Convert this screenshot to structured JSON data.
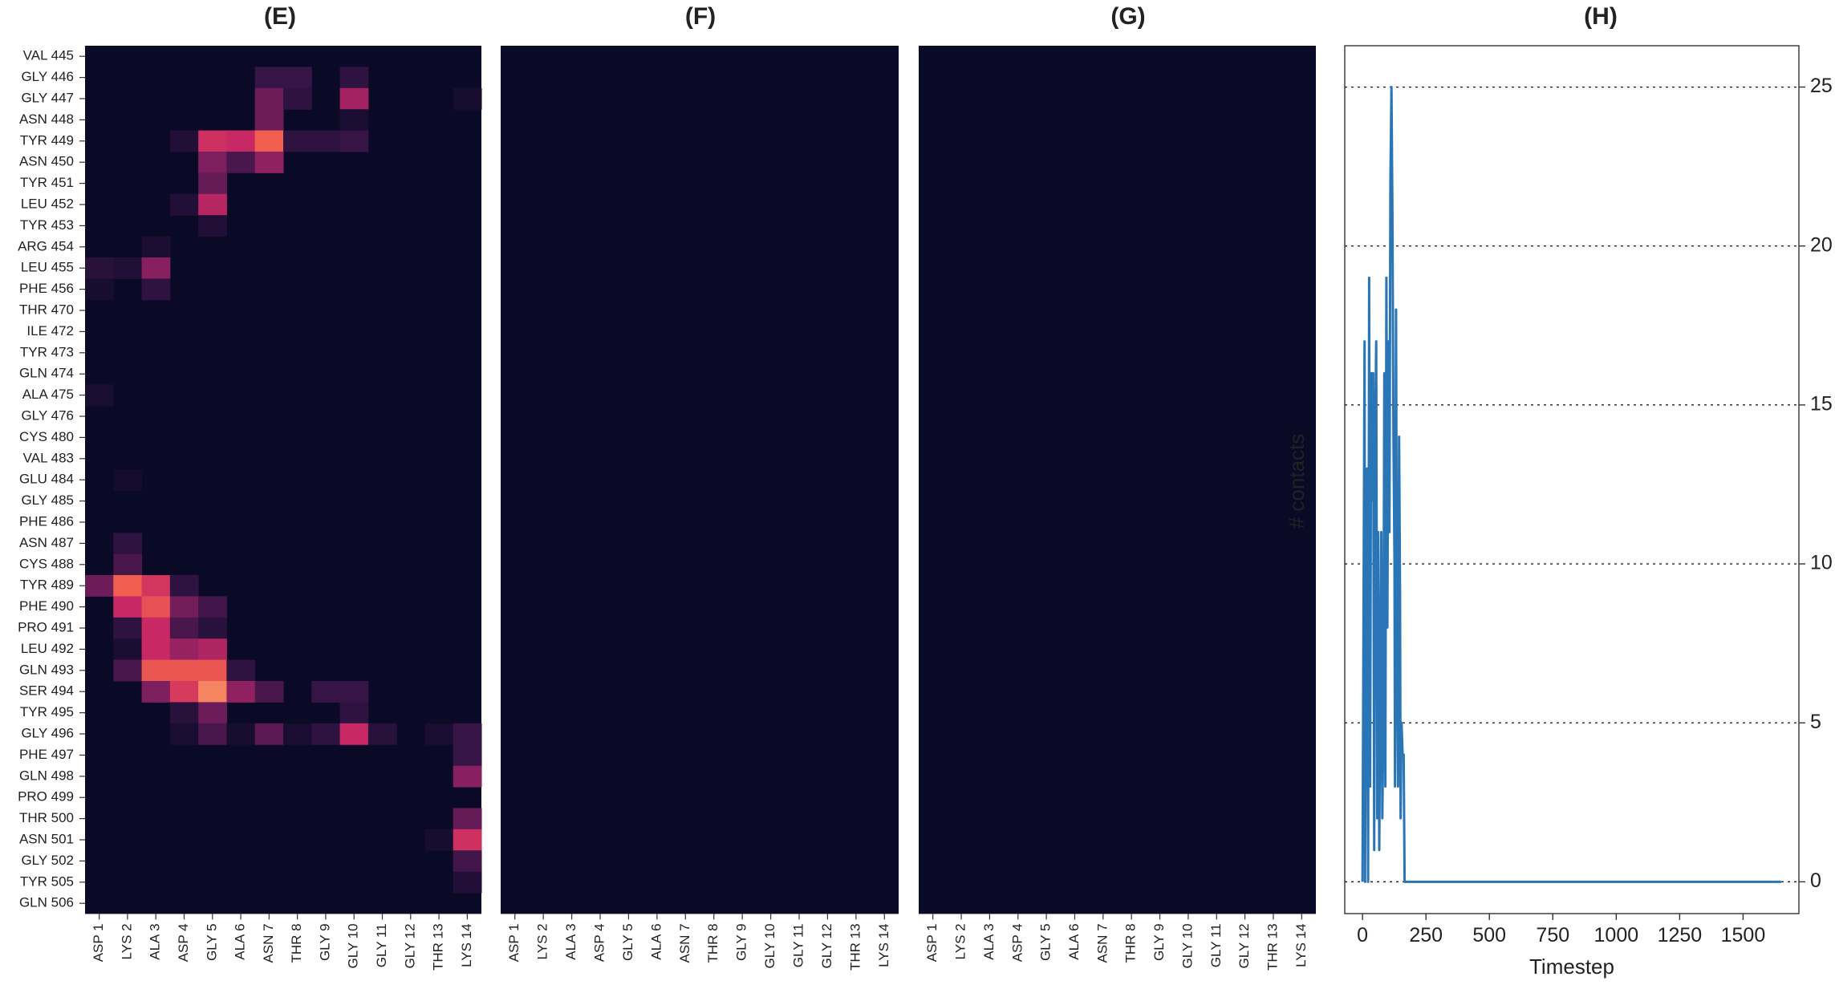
{
  "chart_data": [
    {
      "type": "heatmap",
      "title": "(E)",
      "x_categories": [
        "ASP 1",
        "LYS 2",
        "ALA 3",
        "ASP 4",
        "GLY 5",
        "ALA 6",
        "ASN 7",
        "THR 8",
        "GLY 9",
        "GLY 10",
        "GLY 11",
        "GLY 12",
        "THR 13",
        "LYS 14"
      ],
      "y_categories": [
        "VAL 445",
        "GLY 446",
        "GLY 447",
        "ASN 448",
        "TYR 449",
        "ASN 450",
        "TYR 451",
        "LEU 452",
        "TYR 453",
        "ARG 454",
        "LEU 455",
        "PHE 456",
        "THR 470",
        "ILE 472",
        "TYR 473",
        "GLN 474",
        "ALA 475",
        "GLY 476",
        "CYS 480",
        "VAL 483",
        "GLU 484",
        "GLY 485",
        "PHE 486",
        "ASN 487",
        "CYS 488",
        "TYR 489",
        "PHE 490",
        "PRO 491",
        "LEU 492",
        "GLN 493",
        "SER 494",
        "TYR 495",
        "GLY 496",
        "PHE 497",
        "GLN 498",
        "PRO 499",
        "THR 500",
        "ASN 501",
        "GLY 502",
        "TYR 505",
        "GLN 506"
      ],
      "values": [
        [
          0,
          0,
          0,
          0,
          0,
          0,
          0,
          0,
          0,
          0,
          0,
          0,
          0,
          0
        ],
        [
          0,
          0,
          0,
          0,
          0,
          0,
          0.15,
          0.15,
          0,
          0.12,
          0,
          0,
          0,
          0
        ],
        [
          0,
          0,
          0,
          0,
          0,
          0,
          0.3,
          0.12,
          0,
          0.45,
          0,
          0,
          0,
          0.04
        ],
        [
          0,
          0,
          0,
          0,
          0,
          0,
          0.3,
          0,
          0,
          0.05,
          0,
          0,
          0,
          0
        ],
        [
          0,
          0,
          0,
          0.08,
          0.58,
          0.55,
          0.75,
          0.12,
          0.12,
          0.15,
          0,
          0,
          0,
          0
        ],
        [
          0,
          0,
          0,
          0,
          0.35,
          0.2,
          0.4,
          0,
          0,
          0,
          0,
          0,
          0,
          0
        ],
        [
          0,
          0,
          0,
          0,
          0.28,
          0,
          0,
          0,
          0,
          0,
          0,
          0,
          0,
          0
        ],
        [
          0,
          0,
          0,
          0.08,
          0.5,
          0,
          0,
          0,
          0,
          0,
          0,
          0,
          0,
          0
        ],
        [
          0,
          0,
          0,
          0,
          0.08,
          0,
          0,
          0,
          0,
          0,
          0,
          0,
          0,
          0
        ],
        [
          0,
          0,
          0.06,
          0,
          0,
          0,
          0,
          0,
          0,
          0,
          0,
          0,
          0,
          0
        ],
        [
          0.1,
          0.08,
          0.38,
          0,
          0,
          0,
          0,
          0,
          0,
          0,
          0,
          0,
          0,
          0
        ],
        [
          0.04,
          0,
          0.12,
          0,
          0,
          0,
          0,
          0,
          0,
          0,
          0,
          0,
          0,
          0
        ],
        [
          0,
          0,
          0,
          0,
          0,
          0,
          0,
          0,
          0,
          0,
          0,
          0,
          0,
          0
        ],
        [
          0,
          0,
          0,
          0,
          0,
          0,
          0,
          0,
          0,
          0,
          0,
          0,
          0,
          0
        ],
        [
          0,
          0,
          0,
          0,
          0,
          0,
          0,
          0,
          0,
          0,
          0,
          0,
          0,
          0
        ],
        [
          0,
          0,
          0,
          0,
          0,
          0,
          0,
          0,
          0,
          0,
          0,
          0,
          0,
          0
        ],
        [
          0.05,
          0,
          0,
          0,
          0,
          0,
          0,
          0,
          0,
          0,
          0,
          0,
          0,
          0
        ],
        [
          0,
          0,
          0,
          0,
          0,
          0,
          0,
          0,
          0,
          0,
          0,
          0,
          0,
          0
        ],
        [
          0,
          0,
          0,
          0,
          0,
          0,
          0,
          0,
          0,
          0,
          0,
          0,
          0,
          0
        ],
        [
          0,
          0,
          0,
          0,
          0,
          0,
          0,
          0,
          0,
          0,
          0,
          0,
          0,
          0
        ],
        [
          0,
          0.03,
          0,
          0,
          0,
          0,
          0,
          0,
          0,
          0,
          0,
          0,
          0,
          0
        ],
        [
          0,
          0,
          0,
          0,
          0,
          0,
          0,
          0,
          0,
          0,
          0,
          0,
          0,
          0
        ],
        [
          0,
          0,
          0,
          0,
          0,
          0,
          0,
          0,
          0,
          0,
          0,
          0,
          0,
          0
        ],
        [
          0,
          0.12,
          0,
          0,
          0,
          0,
          0,
          0,
          0,
          0,
          0,
          0,
          0,
          0
        ],
        [
          0,
          0.2,
          0,
          0,
          0,
          0,
          0,
          0,
          0,
          0,
          0,
          0,
          0,
          0
        ],
        [
          0.3,
          0.75,
          0.6,
          0.12,
          0,
          0,
          0,
          0,
          0,
          0,
          0,
          0,
          0,
          0
        ],
        [
          0,
          0.55,
          0.7,
          0.32,
          0.18,
          0,
          0,
          0,
          0,
          0,
          0,
          0,
          0,
          0
        ],
        [
          0,
          0.12,
          0.55,
          0.2,
          0.1,
          0,
          0,
          0,
          0,
          0,
          0,
          0,
          0,
          0
        ],
        [
          0,
          0.06,
          0.55,
          0.42,
          0.48,
          0,
          0,
          0,
          0,
          0,
          0,
          0,
          0,
          0
        ],
        [
          0,
          0.2,
          0.72,
          0.72,
          0.72,
          0.12,
          0,
          0,
          0,
          0,
          0,
          0,
          0,
          0
        ],
        [
          0,
          0,
          0.35,
          0.62,
          0.85,
          0.4,
          0.2,
          0,
          0.15,
          0.15,
          0,
          0,
          0,
          0
        ],
        [
          0,
          0,
          0,
          0.1,
          0.3,
          0,
          0,
          0,
          0,
          0.12,
          0,
          0,
          0,
          0
        ],
        [
          0,
          0,
          0,
          0.05,
          0.2,
          0.04,
          0.25,
          0.05,
          0.12,
          0.55,
          0.1,
          0,
          0.05,
          0.15
        ],
        [
          0,
          0,
          0,
          0,
          0,
          0,
          0,
          0,
          0,
          0,
          0,
          0,
          0,
          0.15
        ],
        [
          0,
          0,
          0,
          0,
          0,
          0,
          0,
          0,
          0,
          0,
          0,
          0,
          0,
          0.38
        ],
        [
          0,
          0,
          0,
          0,
          0,
          0,
          0,
          0,
          0,
          0,
          0,
          0,
          0,
          0
        ],
        [
          0,
          0,
          0,
          0,
          0,
          0,
          0,
          0,
          0,
          0,
          0,
          0,
          0,
          0.28
        ],
        [
          0,
          0,
          0,
          0,
          0,
          0,
          0,
          0,
          0,
          0,
          0,
          0,
          0.04,
          0.58
        ],
        [
          0,
          0,
          0,
          0,
          0,
          0,
          0,
          0,
          0,
          0,
          0,
          0,
          0,
          0.18
        ],
        [
          0,
          0,
          0,
          0,
          0,
          0,
          0,
          0,
          0,
          0,
          0,
          0,
          0,
          0.08
        ],
        [
          0,
          0,
          0,
          0,
          0,
          0,
          0,
          0,
          0,
          0,
          0,
          0,
          0,
          0
        ]
      ]
    },
    {
      "type": "heatmap",
      "title": "(F)",
      "x_categories": [
        "ASP 1",
        "LYS 2",
        "ALA 3",
        "ASP 4",
        "GLY 5",
        "ALA 6",
        "ASN 7",
        "THR 8",
        "GLY 9",
        "GLY 10",
        "GLY 11",
        "GLY 12",
        "THR 13",
        "LYS 14"
      ],
      "values": "all zero"
    },
    {
      "type": "heatmap",
      "title": "(G)",
      "x_categories": [
        "ASP 1",
        "LYS 2",
        "ALA 3",
        "ASP 4",
        "GLY 5",
        "ALA 6",
        "ASN 7",
        "THR 8",
        "GLY 9",
        "GLY 10",
        "GLY 11",
        "GLY 12",
        "THR 13",
        "LYS 14"
      ],
      "values": "all zero"
    },
    {
      "type": "line",
      "title": "(H)",
      "xlabel": "Timestep",
      "ylabel": "# contacts",
      "xlim": [
        -70,
        1720
      ],
      "ylim": [
        -1,
        26.3
      ],
      "xticks": [
        0,
        250,
        500,
        750,
        1000,
        1250,
        1500
      ],
      "yticks": [
        0,
        5,
        10,
        15,
        20,
        25
      ],
      "grid": "horizontal dotted",
      "color": "#2a75b6",
      "x": [
        0,
        8,
        10,
        14,
        18,
        22,
        26,
        30,
        34,
        38,
        42,
        46,
        50,
        54,
        58,
        62,
        66,
        70,
        74,
        78,
        82,
        86,
        90,
        94,
        98,
        102,
        106,
        110,
        114,
        118,
        122,
        126,
        128,
        132,
        136,
        140,
        144,
        148,
        150,
        154,
        158,
        162,
        166,
        170,
        174,
        1650
      ],
      "y": [
        0,
        17,
        0,
        8,
        13,
        0,
        19,
        3,
        16,
        12,
        16,
        1,
        14,
        17,
        2,
        11,
        1,
        6,
        11,
        2,
        5,
        16,
        3,
        19,
        8,
        17,
        11,
        22,
        25,
        21,
        14,
        10,
        3,
        18,
        7,
        3,
        14,
        9,
        2,
        5,
        4,
        4,
        0,
        0,
        0,
        0
      ]
    }
  ]
}
